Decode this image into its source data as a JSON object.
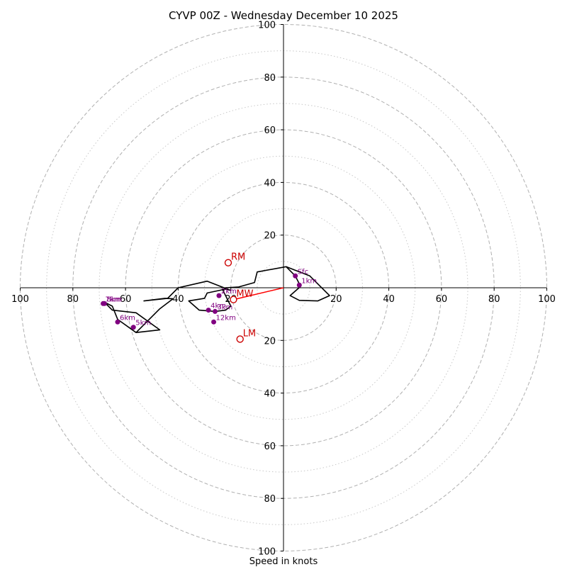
{
  "chart_data": {
    "type": "hodograph",
    "title": "CYVP 00Z - Wednesday December 10 2025",
    "xlabel": "Speed in knots",
    "xlim": [
      -100,
      100
    ],
    "ylim": [
      -100,
      100
    ],
    "rings_major": [
      20,
      40,
      60,
      80,
      100
    ],
    "rings_minor": [
      10,
      30,
      50,
      70,
      90
    ],
    "ticks": {
      "left": [
        "100",
        "80",
        "60",
        "40",
        "20"
      ],
      "right": [
        "20",
        "40",
        "60",
        "80",
        "100"
      ],
      "top": [
        "20",
        "40",
        "60",
        "80",
        "100"
      ],
      "bottom": [
        "20",
        "40",
        "60",
        "80",
        "100"
      ]
    },
    "colors": {
      "trace": "#000000",
      "points": "#800080",
      "storm_motion": "#cc0000",
      "shear_vector": "#ff0000",
      "grid": "#b0b0b0"
    },
    "trace": [
      [
        1,
        8
      ],
      [
        10,
        4.5
      ],
      [
        17.5,
        -3
      ],
      [
        13,
        -5
      ],
      [
        6,
        -4.8
      ],
      [
        2.5,
        -3
      ],
      [
        6.5,
        0.5
      ],
      [
        4.5,
        4.5
      ],
      [
        1,
        8
      ],
      [
        -10,
        6
      ],
      [
        -11,
        2
      ],
      [
        -17,
        0.3
      ],
      [
        -22,
        0
      ],
      [
        -23,
        -1
      ],
      [
        -21,
        -5
      ],
      [
        -20,
        -7
      ],
      [
        -22,
        -8.5
      ],
      [
        -26,
        -9
      ],
      [
        -32,
        -8.5
      ],
      [
        -36,
        -5
      ],
      [
        -30,
        -4
      ],
      [
        -29,
        -2
      ],
      [
        -22,
        -0.5
      ],
      [
        -20,
        -1
      ],
      [
        -29,
        2.5
      ],
      [
        -40,
        0
      ],
      [
        -44,
        -4
      ],
      [
        -53,
        -5
      ],
      [
        -45,
        -4
      ],
      [
        -42,
        -4.2
      ],
      [
        -47,
        -8
      ],
      [
        -56,
        -17
      ],
      [
        -63,
        -12
      ],
      [
        -65,
        -7
      ],
      [
        -68,
        -5.5
      ],
      [
        -67.5,
        -6
      ],
      [
        -65,
        -8.5
      ],
      [
        -56,
        -9.5
      ],
      [
        -47,
        -16
      ],
      [
        -56,
        -17
      ]
    ],
    "height_points": [
      {
        "label": "Sfc",
        "u": 4.5,
        "v": 4.5
      },
      {
        "label": "1km",
        "u": 6,
        "v": 1
      },
      {
        "label": "2km",
        "u": -24.5,
        "v": -3
      },
      {
        "label": "3km",
        "u": -26,
        "v": -9
      },
      {
        "label": "4km",
        "u": -28.5,
        "v": -8.5
      },
      {
        "label": "5km",
        "u": -57,
        "v": -15
      },
      {
        "label": "6km",
        "u": -63,
        "v": -13
      },
      {
        "label": "7km",
        "u": -68.5,
        "v": -6
      },
      {
        "label": "8km",
        "u": -68,
        "v": -6
      },
      {
        "label": "12km",
        "u": -26.5,
        "v": -13
      }
    ],
    "storm_motion": [
      {
        "label": "RM",
        "u": -21,
        "v": 9.5
      },
      {
        "label": "MW",
        "u": -19,
        "v": -4.5
      },
      {
        "label": "LM",
        "u": -16.5,
        "v": -19.5
      }
    ],
    "shear_vector": {
      "from": [
        0,
        0
      ],
      "to": [
        -19,
        -4.5
      ]
    }
  }
}
